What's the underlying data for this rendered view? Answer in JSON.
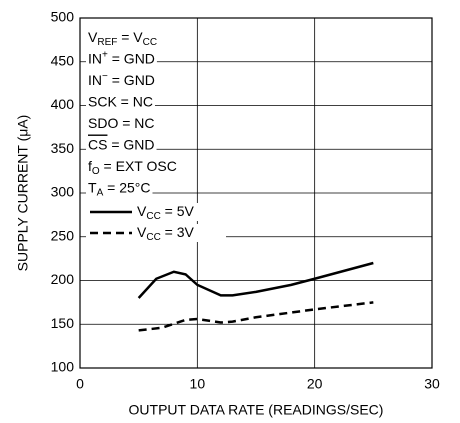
{
  "chart_data": {
    "type": "line",
    "xlabel": "OUTPUT DATA RATE (READINGS/SEC)",
    "ylabel": "SUPPLY CURRENT (μA)",
    "xlim": [
      0,
      30
    ],
    "xticks": [
      0,
      10,
      20,
      30
    ],
    "ylim": [
      100,
      500
    ],
    "yticks": [
      100,
      150,
      200,
      250,
      300,
      350,
      400,
      450,
      500
    ],
    "grid": true,
    "annotations": [
      [
        "V",
        {
          "text": "REF",
          "style": "sub"
        },
        " = V",
        {
          "text": "CC",
          "style": "sub"
        }
      ],
      [
        "IN",
        {
          "text": "+",
          "style": "sup"
        },
        " = GND"
      ],
      [
        "IN",
        {
          "text": "−",
          "style": "sup"
        },
        " = GND"
      ],
      [
        "SCK = NC"
      ],
      [
        "SDO = NC"
      ],
      [
        {
          "text": "CS",
          "style": "overline"
        },
        " = GND"
      ],
      [
        "f",
        {
          "text": "O",
          "style": "sub"
        },
        " = EXT OSC"
      ],
      [
        "T",
        {
          "text": "A",
          "style": "sub"
        },
        " = 25°C"
      ]
    ],
    "series": [
      {
        "name": [
          "V",
          {
            "text": "CC",
            "style": "sub"
          },
          " = 5V"
        ],
        "color": "#000000",
        "line_style": "solid",
        "x": [
          5,
          6.5,
          8,
          9,
          10,
          12,
          13,
          15,
          18,
          20,
          25
        ],
        "values": [
          180,
          202,
          210,
          207,
          195,
          183,
          183,
          187,
          195,
          202,
          220
        ]
      },
      {
        "name": [
          "V",
          {
            "text": "CC",
            "style": "sub"
          },
          " = 3V"
        ],
        "color": "#000000",
        "line_style": "dashed",
        "x": [
          5,
          7,
          9,
          10,
          12,
          13,
          15,
          20,
          25
        ],
        "values": [
          143,
          146,
          155,
          156,
          152,
          153,
          158,
          167,
          175
        ]
      }
    ]
  }
}
